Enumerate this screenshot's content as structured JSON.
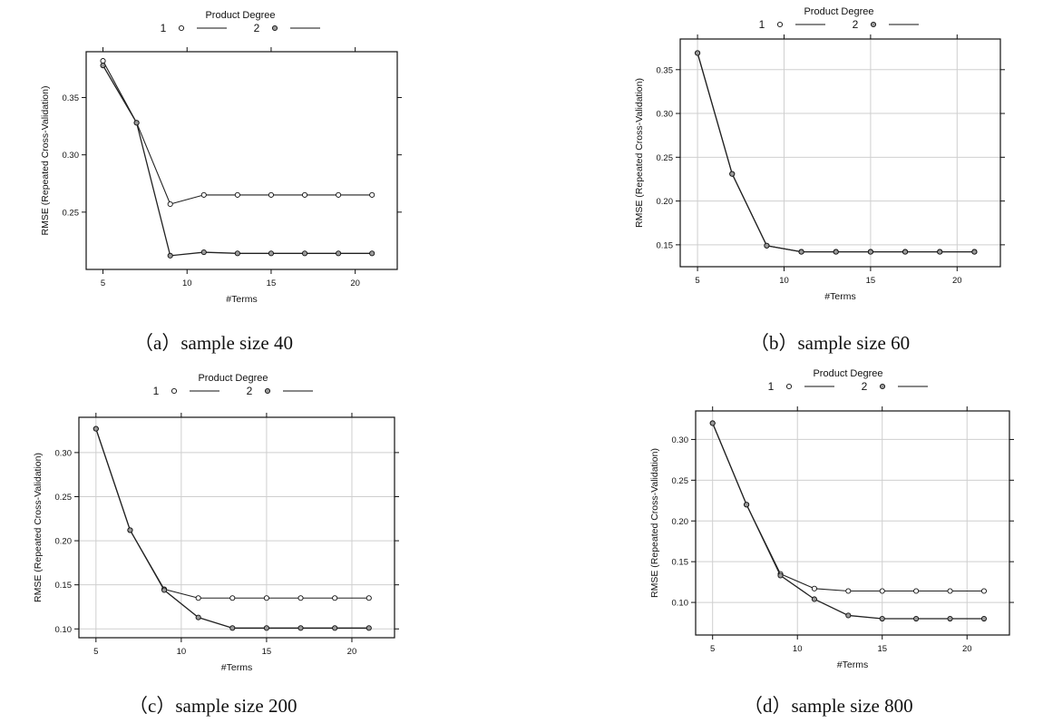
{
  "chart_data": [
    {
      "type": "line",
      "caption": "（a）sample size 40",
      "legend_title": "Product Degree",
      "xlabel": "#Terms",
      "ylabel": "RMSE (Repeated Cross-Validation)",
      "x": [
        5,
        7,
        9,
        11,
        13,
        15,
        17,
        19,
        21
      ],
      "xlim": [
        4,
        22.5
      ],
      "ylim": [
        0.2,
        0.39
      ],
      "xticks": [
        5,
        10,
        15,
        20
      ],
      "yticks": [
        0.25,
        0.3,
        0.35
      ],
      "grid": false,
      "legend_placement": "top",
      "series": [
        {
          "name": "1",
          "values": [
            0.382,
            0.328,
            0.257,
            0.265,
            0.265,
            0.265,
            0.265,
            0.265,
            0.265
          ]
        },
        {
          "name": "2",
          "values": [
            0.378,
            0.328,
            0.212,
            0.215,
            0.214,
            0.214,
            0.214,
            0.214,
            0.214
          ]
        }
      ]
    },
    {
      "type": "line",
      "caption": "（b）sample size 60",
      "legend_title": "Product Degree",
      "xlabel": "#Terms",
      "ylabel": "RMSE (Repeated Cross-Validation)",
      "x": [
        5,
        7,
        9,
        11,
        13,
        15,
        17,
        19,
        21
      ],
      "xlim": [
        4,
        22.5
      ],
      "ylim": [
        0.125,
        0.385
      ],
      "xticks": [
        5,
        10,
        15,
        20
      ],
      "yticks": [
        0.15,
        0.2,
        0.25,
        0.3,
        0.35
      ],
      "grid": true,
      "legend_placement": "top",
      "series": [
        {
          "name": "1",
          "values": [
            0.369,
            0.231,
            0.149,
            0.142,
            0.142,
            0.142,
            0.142,
            0.142,
            0.142
          ]
        },
        {
          "name": "2",
          "values": [
            0.369,
            0.231,
            0.149,
            0.142,
            0.142,
            0.142,
            0.142,
            0.142,
            0.142
          ]
        }
      ]
    },
    {
      "type": "line",
      "caption": "（c）sample size 200",
      "legend_title": "Product Degree",
      "xlabel": "#Terms",
      "ylabel": "RMSE (Repeated Cross-Validation)",
      "x": [
        5,
        7,
        9,
        11,
        13,
        15,
        17,
        19,
        21
      ],
      "xlim": [
        4,
        22.5
      ],
      "ylim": [
        0.09,
        0.34
      ],
      "xticks": [
        5,
        10,
        15,
        20
      ],
      "yticks": [
        0.1,
        0.15,
        0.2,
        0.25,
        0.3
      ],
      "grid": true,
      "legend_placement": "top",
      "series": [
        {
          "name": "1",
          "values": [
            0.327,
            0.212,
            0.145,
            0.135,
            0.135,
            0.135,
            0.135,
            0.135,
            0.135
          ]
        },
        {
          "name": "2",
          "values": [
            0.327,
            0.212,
            0.144,
            0.113,
            0.101,
            0.101,
            0.101,
            0.101,
            0.101
          ]
        }
      ]
    },
    {
      "type": "line",
      "caption": "（d）sample size 800",
      "legend_title": "Product Degree",
      "xlabel": "#Terms",
      "ylabel": "RMSE (Repeated Cross-Validation)",
      "x": [
        5,
        7,
        9,
        11,
        13,
        15,
        17,
        19,
        21
      ],
      "xlim": [
        4,
        22.5
      ],
      "ylim": [
        0.06,
        0.335
      ],
      "xticks": [
        5,
        10,
        15,
        20
      ],
      "yticks": [
        0.1,
        0.15,
        0.2,
        0.25,
        0.3
      ],
      "grid": true,
      "legend_placement": "top",
      "series": [
        {
          "name": "1",
          "values": [
            0.32,
            0.22,
            0.135,
            0.117,
            0.114,
            0.114,
            0.114,
            0.114,
            0.114
          ]
        },
        {
          "name": "2",
          "values": [
            0.32,
            0.22,
            0.133,
            0.104,
            0.084,
            0.08,
            0.08,
            0.08,
            0.08
          ]
        }
      ]
    }
  ]
}
